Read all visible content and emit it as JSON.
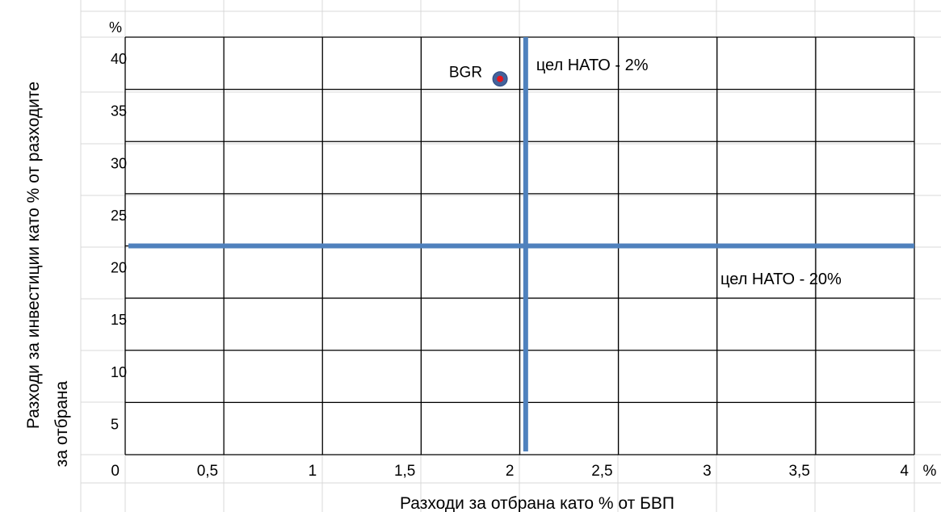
{
  "chart_data": {
    "type": "scatter",
    "xlabel": "Разходи за отбрана като % от БВП",
    "ylabel_line1": "Разходи за инвестиции като  % от разходите",
    "ylabel_line2": "за отбрана",
    "x_unit": "%",
    "y_unit": "%",
    "xlim": [
      0,
      4
    ],
    "ylim": [
      0,
      40
    ],
    "x_ticks": [
      {
        "value": 0,
        "label": "0"
      },
      {
        "value": 0.5,
        "label": "0,5"
      },
      {
        "value": 1,
        "label": "1"
      },
      {
        "value": 1.5,
        "label": "1,5"
      },
      {
        "value": 2,
        "label": "2"
      },
      {
        "value": 2.5,
        "label": "2,5"
      },
      {
        "value": 3,
        "label": "3"
      },
      {
        "value": 3.5,
        "label": "3,5"
      },
      {
        "value": 4,
        "label": "4"
      }
    ],
    "y_ticks": [
      {
        "value": 5,
        "label": "5"
      },
      {
        "value": 10,
        "label": "10"
      },
      {
        "value": 15,
        "label": "15"
      },
      {
        "value": 20,
        "label": "20"
      },
      {
        "value": 25,
        "label": "25"
      },
      {
        "value": 30,
        "label": "30"
      },
      {
        "value": 35,
        "label": "35"
      },
      {
        "value": 40,
        "label": "40"
      }
    ],
    "grid": true,
    "points": [
      {
        "label": "BGR",
        "x": 1.9,
        "y": 36,
        "color": "#e8141c",
        "edge_color": "#44629b"
      }
    ],
    "reference_lines": [
      {
        "orientation": "vertical",
        "value": 2.03,
        "label": "цел НАТО - 2%",
        "color": "#4f81bd"
      },
      {
        "orientation": "horizontal",
        "value": 20,
        "label": "цел НАТО - 20%",
        "color": "#4f81bd"
      }
    ]
  }
}
